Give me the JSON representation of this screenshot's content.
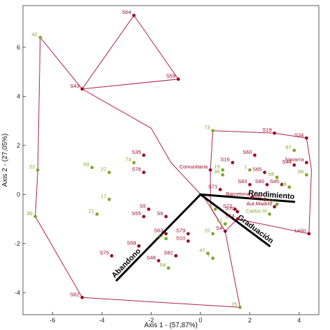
{
  "chart_data": {
    "type": "scatter",
    "xlabel": "Axis 1 - (57,87%)",
    "ylabel": "Axis 2 - (27,05%)",
    "xlim": [
      -7.2,
      4.8
    ],
    "ylim": [
      -4.9,
      7.7
    ],
    "xticks": [
      "-6",
      "-4",
      "-2",
      "0",
      "2",
      "4"
    ],
    "xtick_values": [
      -6,
      -4,
      -2,
      0,
      2,
      4
    ],
    "yticks": [
      "-4",
      "-2",
      "0",
      "2",
      "4",
      "6"
    ],
    "ytick_values": [
      -4,
      -2,
      0,
      2,
      4,
      6
    ],
    "colors": {
      "red_point": "#9b0a2a",
      "green_label": "#7fa827",
      "hull": "#b02050",
      "vector": "#000000",
      "axis": "#333333"
    },
    "red_points": [
      {
        "label": "S64",
        "x": -2.7,
        "y": 7.3
      },
      {
        "label": "S43",
        "x": -4.8,
        "y": 4.3
      },
      {
        "label": "S59",
        "x": -0.9,
        "y": 4.7
      },
      {
        "label": "S62",
        "x": -4.8,
        "y": -4.2
      },
      {
        "label": "S19",
        "x": 3.0,
        "y": 2.5
      },
      {
        "label": "S34",
        "x": 4.3,
        "y": 2.3
      },
      {
        "label": "S60",
        "x": 2.2,
        "y": 1.6
      },
      {
        "label": "S16",
        "x": 1.3,
        "y": 1.3
      },
      {
        "label": "Navarra",
        "x": 4.3,
        "y": 1.3
      },
      {
        "label": "S44",
        "x": 3.8,
        "y": 1.2
      },
      {
        "label": "S65",
        "x": 2.6,
        "y": 0.9
      },
      {
        "label": "Comunitaria",
        "x": 0.4,
        "y": 1.0
      },
      {
        "label": "S45",
        "x": 3.3,
        "y": 0.4
      },
      {
        "label": "S80",
        "x": 2.7,
        "y": 0.4
      },
      {
        "label": "S83",
        "x": 2.0,
        "y": 0.4
      },
      {
        "label": "S71",
        "x": 0.8,
        "y": 0.2
      },
      {
        "label": "Barcelona",
        "x": 2.1,
        "y": -0.1
      },
      {
        "label": "S31",
        "x": 2.6,
        "y": -0.2
      },
      {
        "label": "Aut.Madrid",
        "x": 3.0,
        "y": -0.5
      },
      {
        "label": "S72",
        "x": 1.4,
        "y": -0.6
      },
      {
        "label": "S70",
        "x": 1.5,
        "y": -0.7
      },
      {
        "label": "León",
        "x": 4.4,
        "y": -1.6
      },
      {
        "label": "S35",
        "x": -2.3,
        "y": 1.6
      },
      {
        "label": "S76",
        "x": -2.3,
        "y": 0.9
      },
      {
        "label": "S5",
        "x": -2.1,
        "y": -0.6
      },
      {
        "label": "S55",
        "x": -2.3,
        "y": -0.9
      },
      {
        "label": "S6",
        "x": -1.4,
        "y": -0.9
      },
      {
        "label": "S63",
        "x": -1.4,
        "y": -1.6
      },
      {
        "label": "S79",
        "x": -0.5,
        "y": -1.6
      },
      {
        "label": "S10",
        "x": -0.5,
        "y": -1.9
      },
      {
        "label": "S58",
        "x": -2.5,
        "y": -2.1
      },
      {
        "label": "S75",
        "x": -3.6,
        "y": -2.5
      },
      {
        "label": "S48",
        "x": -1.7,
        "y": -2.7
      },
      {
        "label": "S82",
        "x": -1.0,
        "y": -2.5
      },
      {
        "label": "S4",
        "x": 1.0,
        "y": -1.5
      },
      {
        "label": "S14",
        "x": 1.5,
        "y": -1.0
      }
    ],
    "green_points": [
      {
        "label": "42",
        "x": -6.5,
        "y": 6.4
      },
      {
        "label": "22",
        "x": -6.6,
        "y": 1.0
      },
      {
        "label": "30",
        "x": -6.7,
        "y": -0.9
      },
      {
        "label": "74",
        "x": -2.7,
        "y": 1.3
      },
      {
        "label": "69",
        "x": -4.4,
        "y": 1.1
      },
      {
        "label": "27",
        "x": -3.7,
        "y": 0.9
      },
      {
        "label": "17",
        "x": -3.7,
        "y": -0.2
      },
      {
        "label": "21",
        "x": -4.2,
        "y": -0.8
      },
      {
        "label": "73",
        "x": 0.5,
        "y": 2.6
      },
      {
        "label": "67",
        "x": 3.8,
        "y": 1.8
      },
      {
        "label": "15",
        "x": 0.9,
        "y": 1.0
      },
      {
        "label": "36",
        "x": 0.9,
        "y": 0.8
      },
      {
        "label": "1",
        "x": 2.0,
        "y": 1.0
      },
      {
        "label": "68",
        "x": 3.1,
        "y": 0.7
      },
      {
        "label": "66",
        "x": 4.3,
        "y": 0.8
      },
      {
        "label": "39",
        "x": 3.6,
        "y": 0.3
      },
      {
        "label": "53",
        "x": 3.1,
        "y": -0.4
      },
      {
        "label": "6",
        "x": 0.6,
        "y": -0.6
      },
      {
        "label": "Carlos III",
        "x": 2.8,
        "y": -0.8
      },
      {
        "label": "61",
        "x": 1.0,
        "y": -1.2
      },
      {
        "label": "20",
        "x": 0.5,
        "y": -1.6
      },
      {
        "label": "33",
        "x": -1.4,
        "y": -1.8
      },
      {
        "label": "47",
        "x": 0.3,
        "y": -2.4
      },
      {
        "label": "7",
        "x": 0.5,
        "y": -2.6
      },
      {
        "label": "54",
        "x": -1.3,
        "y": -3.0
      },
      {
        "label": "25",
        "x": 1.6,
        "y": -4.6
      }
    ],
    "hulls": [
      {
        "points": [
          [
            -6.5,
            6.4
          ],
          [
            -4.8,
            4.3
          ],
          [
            -2.0,
            2.7
          ],
          [
            -1.2,
            1.3
          ],
          [
            0.2,
            -0.2
          ],
          [
            1.0,
            -1.5
          ],
          [
            1.6,
            -4.6
          ],
          [
            -4.8,
            -4.2
          ],
          [
            -6.7,
            -0.9
          ],
          [
            -6.6,
            1.0
          ]
        ]
      },
      {
        "points": [
          [
            -2.7,
            7.3
          ],
          [
            -0.9,
            4.7
          ],
          [
            -4.8,
            4.3
          ]
        ]
      },
      {
        "points": [
          [
            0.5,
            2.6
          ],
          [
            3.0,
            2.5
          ],
          [
            4.3,
            2.3
          ],
          [
            4.5,
            1.0
          ],
          [
            4.4,
            -1.6
          ],
          [
            1.5,
            -1.0
          ],
          [
            1.0,
            -1.5
          ],
          [
            0.4,
            -0.5
          ],
          [
            0.4,
            1.0
          ]
        ]
      }
    ],
    "vectors": [
      {
        "label": "Rendimiento",
        "x": 3.8,
        "y": -0.3
      },
      {
        "label": "Graduación",
        "x": 2.8,
        "y": -2.1
      },
      {
        "label": "Abandono",
        "x": -3.4,
        "y": -3.5
      }
    ]
  }
}
